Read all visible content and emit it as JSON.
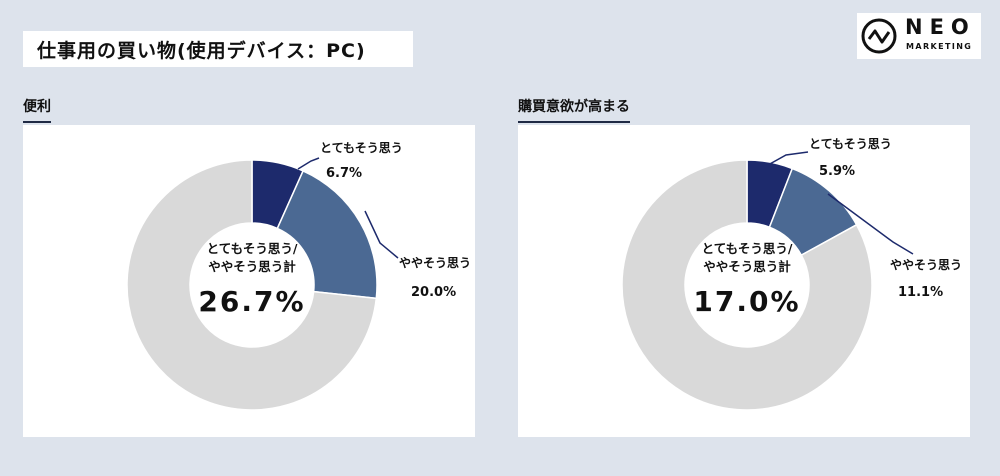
{
  "title": "仕事用の買い物(使用デバイス：PC)",
  "logo": {
    "name": "NEO",
    "sub": "MARKETING"
  },
  "colors": {
    "very": "#1d2a6c",
    "somewhat": "#4b6993",
    "rest": "#d9d9d9",
    "background": "#dde3ec"
  },
  "chart_data": [
    {
      "type": "pie",
      "title": "便利",
      "center_label_line1": "とてもそう思う/",
      "center_label_line2": "ややそう思う計",
      "total": "26.7%",
      "slices": [
        {
          "label": "とてもそう思う",
          "value": 6.7,
          "value_label": "6.7%"
        },
        {
          "label": "ややそう思う",
          "value": 20.0,
          "value_label": "20.0%"
        },
        {
          "label": "",
          "value": 73.3,
          "value_label": ""
        }
      ]
    },
    {
      "type": "pie",
      "title": "購買意欲が高まる",
      "center_label_line1": "とてもそう思う/",
      "center_label_line2": "ややそう思う計",
      "total": "17.0%",
      "slices": [
        {
          "label": "とてもそう思う",
          "value": 5.9,
          "value_label": "5.9%"
        },
        {
          "label": "ややそう思う",
          "value": 11.1,
          "value_label": "11.1%"
        },
        {
          "label": "",
          "value": 83.0,
          "value_label": ""
        }
      ]
    }
  ]
}
